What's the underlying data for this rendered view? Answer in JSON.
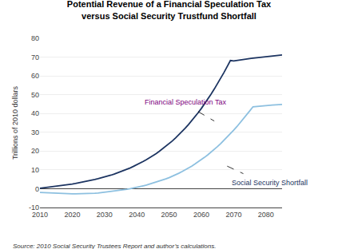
{
  "chart_data": {
    "type": "line",
    "title": "Potential Revenue of a Financial Speculation Tax\nversus Social Security Trustfund Shortfall",
    "ylabel": "Trillions of 2010 dollars",
    "source": "Source: 2010 Social Security Trustees Report and author’s calculations.",
    "x": [
      2010,
      2011,
      2012,
      2013,
      2014,
      2015,
      2016,
      2017,
      2018,
      2019,
      2020,
      2021,
      2022,
      2023,
      2024,
      2025,
      2026,
      2027,
      2028,
      2029,
      2030,
      2031,
      2032,
      2033,
      2034,
      2035,
      2036,
      2037,
      2038,
      2039,
      2040,
      2041,
      2042,
      2043,
      2044,
      2045,
      2046,
      2047,
      2048,
      2049,
      2050,
      2051,
      2052,
      2053,
      2054,
      2055,
      2056,
      2057,
      2058,
      2059,
      2060,
      2061,
      2062,
      2063,
      2064,
      2065,
      2066,
      2067,
      2068,
      2069,
      2070,
      2071,
      2072,
      2073,
      2074,
      2075,
      2076,
      2077,
      2078,
      2079,
      2080,
      2081,
      2082,
      2083,
      2084,
      2085
    ],
    "series": [
      {
        "color": "#1c3461",
        "values": [
          0.2,
          0.4,
          0.6,
          0.8,
          1.0,
          1.2,
          1.5,
          1.7,
          2.0,
          2.2,
          2.5,
          2.8,
          3.1,
          3.4,
          3.7,
          4.1,
          4.5,
          4.9,
          5.3,
          5.7,
          6.2,
          6.7,
          7.2,
          7.8,
          8.4,
          9.0,
          9.7,
          10.4,
          11.1,
          11.9,
          12.7,
          13.6,
          14.5,
          15.5,
          16.5,
          17.6,
          18.7,
          19.9,
          21.2,
          22.5,
          23.9,
          25.4,
          27.0,
          28.6,
          30.4,
          32.2,
          34.1,
          36.1,
          38.2,
          40.4,
          42.7,
          45.1,
          47.6,
          50.3,
          53.0,
          55.8,
          58.8,
          61.8,
          65.0,
          68.2,
          68.0,
          68.3,
          68.5,
          68.8,
          69.0,
          69.2,
          69.4,
          69.6,
          69.8,
          70.0,
          70.1,
          70.3,
          70.5,
          70.7,
          70.9,
          71.1
        ]
      },
      {
        "color": "#8dc0e0",
        "values": [
          -2.0,
          -2.1,
          -2.2,
          -2.3,
          -2.4,
          -2.5,
          -2.6,
          -2.6,
          -2.7,
          -2.7,
          -2.7,
          -2.7,
          -2.7,
          -2.7,
          -2.6,
          -2.6,
          -2.5,
          -2.4,
          -2.3,
          -2.1,
          -2.0,
          -1.8,
          -1.6,
          -1.4,
          -1.1,
          -0.9,
          -0.6,
          -0.3,
          0.0,
          0.3,
          0.7,
          1.1,
          1.5,
          1.9,
          2.4,
          2.9,
          3.4,
          4.0,
          4.6,
          5.2,
          5.9,
          6.6,
          7.4,
          8.2,
          9.1,
          10.0,
          11.0,
          12.0,
          13.1,
          14.2,
          15.4,
          16.7,
          18.0,
          19.4,
          20.9,
          22.4,
          24.0,
          25.7,
          27.4,
          29.2,
          31.1,
          33.0,
          35.0,
          37.1,
          39.2,
          41.4,
          43.6,
          43.8,
          44.0,
          44.2,
          44.3,
          44.4,
          44.5,
          44.6,
          44.7,
          44.8
        ]
      }
    ],
    "annotations": [
      {
        "text": "Financial Speculation Tax",
        "x": 2042,
        "y": 46,
        "color": "#800080",
        "arrow_tail": [
          2059,
          41
        ],
        "arrow_head": [
          2064,
          36
        ]
      },
      {
        "text": "Social Security Shortfall",
        "x": 2069,
        "y": 6,
        "color": "#1c3461",
        "arrow_tail": [
          2068,
          12
        ],
        "arrow_head": [
          2073,
          8
        ]
      }
    ],
    "xlim": [
      2010,
      2085
    ],
    "ylim": [
      -10,
      80
    ],
    "xticks": [
      2010,
      2020,
      2030,
      2040,
      2050,
      2060,
      2070,
      2080
    ],
    "yticks": [
      -10,
      0,
      10,
      20,
      30,
      40,
      50,
      60,
      70,
      80
    ],
    "grid": "y"
  }
}
